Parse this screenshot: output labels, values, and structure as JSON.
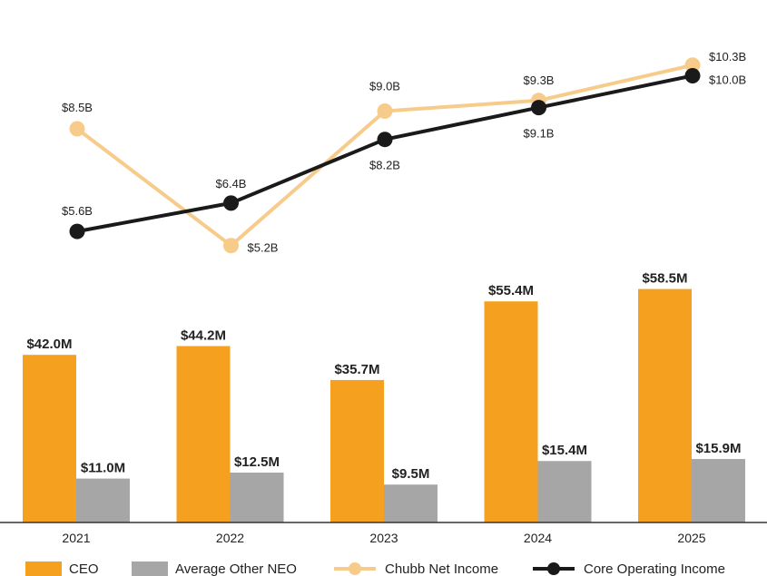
{
  "chart_data": {
    "type": "bar+line",
    "categories": [
      "2021",
      "2022",
      "2023",
      "2024",
      "2025"
    ],
    "bar_series": [
      {
        "name": "CEO",
        "color": "#F5A11F",
        "values": [
          42.0,
          44.2,
          35.7,
          55.4,
          58.5
        ],
        "labels": [
          "$42.0M",
          "$44.2M",
          "$35.7M",
          "$55.4M",
          "$58.5M"
        ]
      },
      {
        "name": "Average Other NEO",
        "color": "#A6A6A6",
        "values": [
          11.0,
          12.5,
          9.5,
          15.4,
          15.9
        ],
        "labels": [
          "$11.0M",
          "$12.5M",
          "$9.5M",
          "$15.4M",
          "$15.9M"
        ]
      }
    ],
    "bar_axis": {
      "unit": "$M",
      "ylim": [
        0,
        100
      ]
    },
    "line_series": [
      {
        "name": "Chubb Net Income",
        "color": "#F7CB8A",
        "values": [
          8.5,
          5.2,
          9.0,
          9.3,
          10.3
        ],
        "labels": [
          "$8.5B",
          "$5.2B",
          "$9.0B",
          "$9.3B",
          "$10.3B"
        ]
      },
      {
        "name": "Core Operating Income",
        "color": "#1A1A1A",
        "values": [
          5.6,
          6.4,
          8.2,
          9.1,
          10.0
        ],
        "labels": [
          "$5.6B",
          "$6.4B",
          "$8.2B",
          "$9.1B",
          "$10.0B"
        ]
      }
    ],
    "line_axis": {
      "unit": "$B",
      "ylim": [
        1.5,
        11.5
      ]
    },
    "legend": [
      {
        "name": "CEO",
        "kind": "box",
        "color": "#F5A11F"
      },
      {
        "name": "Average Other NEO",
        "kind": "box",
        "color": "#A6A6A6"
      },
      {
        "name": "Chubb Net Income",
        "kind": "line",
        "color": "#F7CB8A"
      },
      {
        "name": "Core Operating Income",
        "kind": "line",
        "color": "#1A1A1A"
      }
    ],
    "legend_position": "bottom",
    "title": "",
    "xlabel": "",
    "ylabel": "",
    "grid": false
  }
}
